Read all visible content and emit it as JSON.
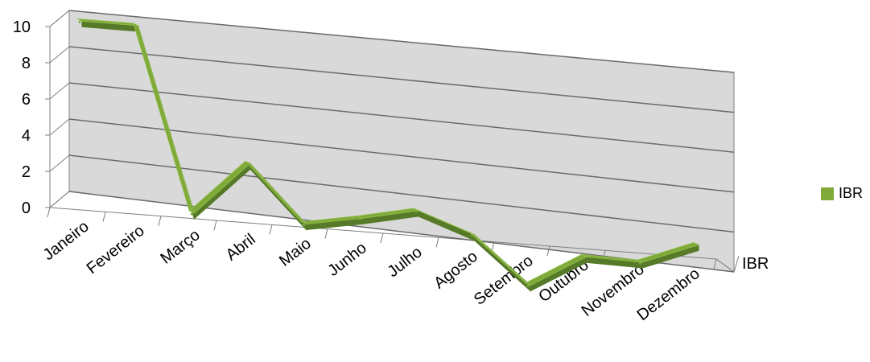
{
  "chart_data": {
    "type": "line",
    "categories": [
      "Janeiro",
      "Fevereiro",
      "Março",
      "Abril",
      "Maio",
      "Junho",
      "Julho",
      "Agosto",
      "Setembro",
      "Outubro",
      "Novembro",
      "Dezembro"
    ],
    "series": [
      {
        "name": "IBR",
        "values": [
          10,
          10,
          0,
          3,
          0,
          0.6,
          1.3,
          0.3,
          -2.1,
          -0.3,
          -0.3,
          0.9
        ],
        "color": "#7faa3a"
      }
    ],
    "y_ticks": [
      "0",
      "2",
      "4",
      "6",
      "8",
      "10"
    ],
    "ylim": [
      0,
      10
    ],
    "depth_axis_label": "IBR",
    "grid": true,
    "legend": {
      "position": "right",
      "label": "IBR"
    },
    "colors": {
      "wall": "#d9d9d9",
      "gridline": "#6b6b6b",
      "line_top": "#7faa3a",
      "line_side": "#567a28"
    }
  }
}
